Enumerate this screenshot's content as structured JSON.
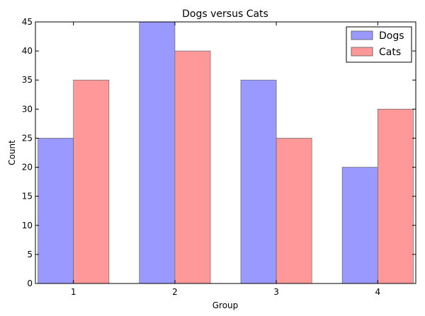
{
  "chart_data": {
    "type": "bar",
    "title": "Dogs versus Cats",
    "xlabel": "Group",
    "ylabel": "Count",
    "categories": [
      "1",
      "2",
      "3",
      "4"
    ],
    "series": [
      {
        "name": "Dogs",
        "values": [
          25,
          45,
          35,
          20
        ],
        "color": "#9999ff"
      },
      {
        "name": "Cats",
        "values": [
          35,
          40,
          25,
          30
        ],
        "color": "#ff9999"
      }
    ],
    "ylim": [
      0,
      45
    ],
    "yticks": [
      0,
      5,
      10,
      15,
      20,
      25,
      30,
      35,
      40,
      45
    ],
    "grid": false,
    "legend_position": "top-right"
  }
}
